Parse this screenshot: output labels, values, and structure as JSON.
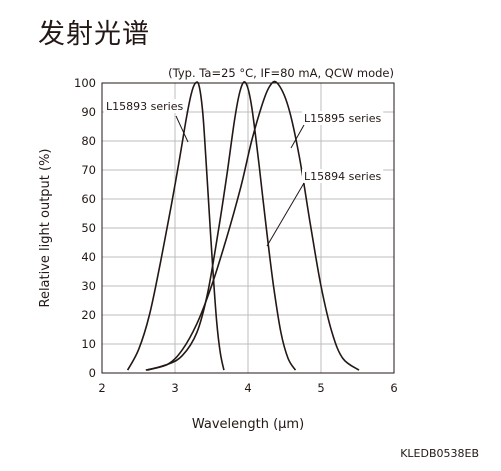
{
  "page": {
    "title": "发射光谱",
    "doc_code": "KLEDB0538EB"
  },
  "chart_data": {
    "type": "line",
    "title": "",
    "condition_note": "(Typ. Ta=25 °C, IF=80 mA, QCW mode)",
    "xlabel": "Wavelength (μm)",
    "ylabel": "Relative light output (%)",
    "xlim": [
      2,
      6
    ],
    "ylim": [
      0,
      100
    ],
    "xticks": [
      2,
      3,
      4,
      5,
      6
    ],
    "yticks": [
      0,
      10,
      20,
      30,
      40,
      50,
      60,
      70,
      80,
      90,
      100
    ],
    "grid": "vertical-and-horizontal",
    "series": [
      {
        "name": "L15893 series",
        "x": [
          2.35,
          2.5,
          2.65,
          2.8,
          2.95,
          3.05,
          3.15,
          3.22,
          3.28,
          3.33,
          3.38,
          3.42,
          3.47,
          3.52,
          3.57,
          3.62,
          3.67
        ],
        "y": [
          1,
          8,
          20,
          38,
          58,
          72,
          87,
          96,
          100,
          99,
          90,
          75,
          55,
          35,
          18,
          7,
          1
        ]
      },
      {
        "name": "L15895 series",
        "x": [
          2.62,
          2.9,
          3.1,
          3.3,
          3.45,
          3.6,
          3.72,
          3.82,
          3.9,
          3.97,
          4.05,
          4.15,
          4.25,
          4.35,
          4.45,
          4.55,
          4.65
        ],
        "y": [
          1,
          3,
          6,
          14,
          28,
          50,
          70,
          88,
          98,
          100,
          92,
          72,
          50,
          30,
          14,
          5,
          1
        ]
      },
      {
        "name": "L15894 series",
        "x": [
          2.6,
          2.9,
          3.1,
          3.3,
          3.5,
          3.7,
          3.9,
          4.05,
          4.2,
          4.3,
          4.4,
          4.55,
          4.7,
          4.85,
          5.0,
          5.15,
          5.3,
          5.52
        ],
        "y": [
          1,
          3,
          8,
          17,
          30,
          46,
          64,
          80,
          93,
          99,
          100,
          92,
          75,
          52,
          30,
          14,
          5,
          1
        ]
      }
    ],
    "annotations": [
      {
        "text": "L15893 series",
        "series": 0
      },
      {
        "text": "L15895 series",
        "series": 1
      },
      {
        "text": "L15894 series",
        "series": 2
      }
    ]
  }
}
